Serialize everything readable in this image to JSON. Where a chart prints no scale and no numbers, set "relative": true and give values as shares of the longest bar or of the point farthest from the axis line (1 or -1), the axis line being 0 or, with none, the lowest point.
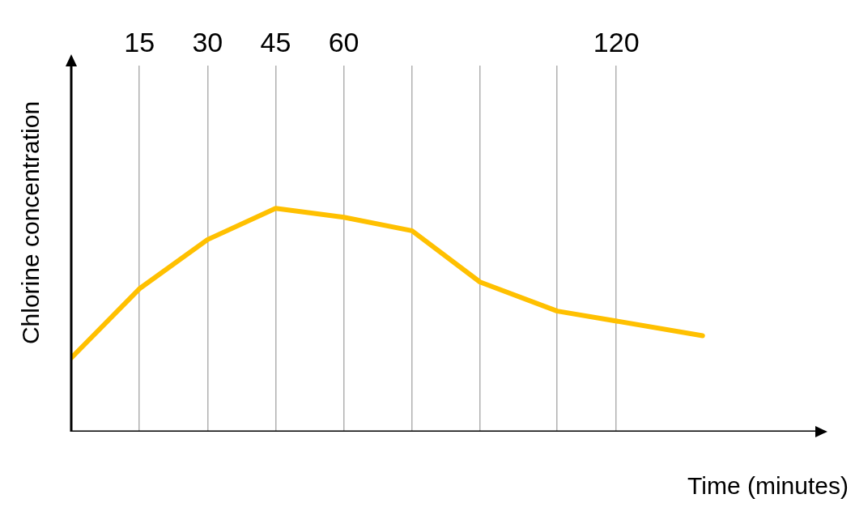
{
  "chart_data": {
    "type": "line",
    "xlabel": "Time (minutes)",
    "ylabel": "Chlorine concentration",
    "relative": true,
    "x": [
      0,
      15,
      30,
      45,
      60,
      75,
      90,
      107,
      139
    ],
    "series": [
      {
        "color": "#ffc000",
        "values": [
          0.33,
          0.64,
          0.86,
          1,
          0.96,
          0.9,
          0.67,
          0.54,
          0.43
        ]
      }
    ],
    "xlim": [
      0,
      164
    ],
    "xticks": [
      15,
      30,
      45,
      60,
      {
        "value": 75,
        "label": null
      },
      {
        "value": 90,
        "label": null
      },
      {
        "value": 107,
        "label": null
      },
      120
    ],
    "grid": "x",
    "legend": false,
    "marker": "none",
    "line_style": "solid"
  }
}
